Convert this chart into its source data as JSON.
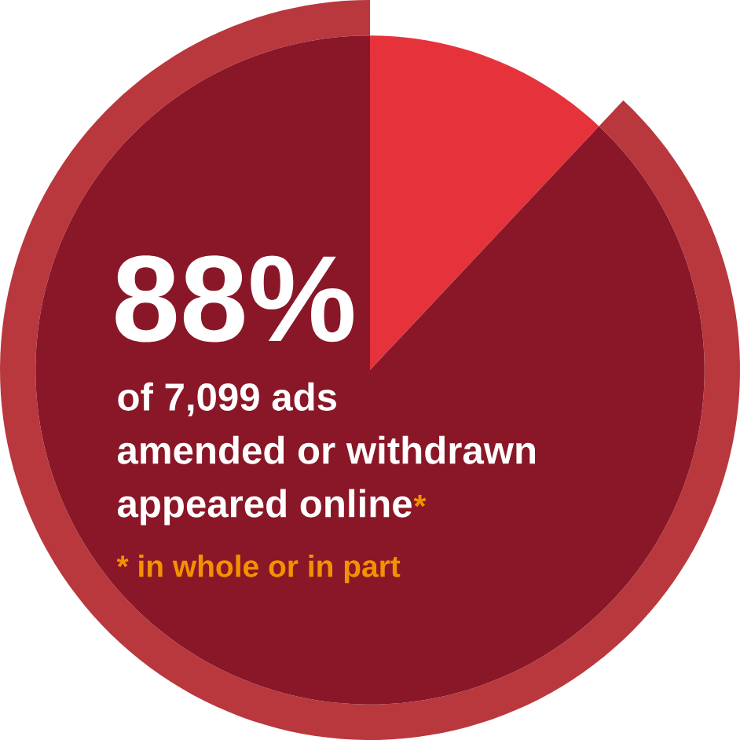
{
  "chart_data": {
    "type": "pie",
    "categories": [
      null,
      null
    ],
    "values": [
      12,
      88
    ],
    "colors": [
      "#e6333b",
      "#8a1727"
    ],
    "value_labels": [
      null,
      "88%"
    ],
    "annotations": [
      "of 7,099 ads",
      "amended or withdrawn",
      "appeared online",
      "*",
      "* in whole or in part"
    ]
  }
}
